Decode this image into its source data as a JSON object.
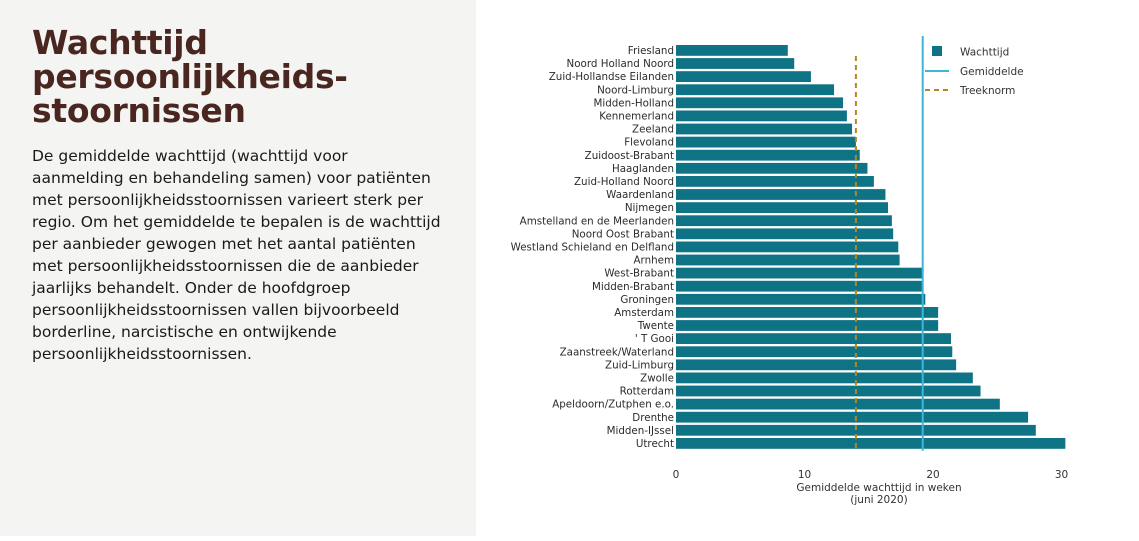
{
  "panel": {
    "title_lines": [
      "Wachttijd",
      "persoonlijkheids-",
      "stoornissen"
    ],
    "description": "De gemiddelde wachttijd (wachttijd voor aanmelding en behandeling samen) voor patiënten met persoonlijkheidsstoornissen varieert sterk per regio. Om het gemiddelde te bepalen is de wachttijd per aanbieder gewogen met het aantal patiënten met persoonlijkheidsstoornissen die de aanbieder jaarlijks behandelt. Onder de hoofdgroep persoonlijkheidsstoornissen vallen bijvoorbeeld borderline, narcistische en ontwijkende persoonlijkheidsstoornissen."
  },
  "colors": {
    "bar": "#0f7386",
    "average": "#3fb6d8",
    "norm": "#b3871f",
    "title": "#4a2620"
  },
  "chart_data": {
    "type": "bar",
    "orientation": "horizontal",
    "categories": [
      "Friesland",
      "Noord Holland Noord",
      "Zuid-Hollandse Eilanden",
      "Noord-Limburg",
      "Midden-Holland",
      "Kennemerland",
      "Zeeland",
      "Flevoland",
      "Zuidoost-Brabant",
      "Haaglanden",
      "Zuid-Holland Noord",
      "Waardenland",
      "Nijmegen",
      "Amstelland en de Meerlanden",
      "Noord Oost Brabant",
      "Westland Schieland en Delfland",
      "Arnhem",
      "West-Brabant",
      "Midden-Brabant",
      "Groningen",
      "Amsterdam",
      "Twente",
      "' T Gooi",
      "Zaanstreek/Waterland",
      "Zuid-Limburg",
      "Zwolle",
      "Rotterdam",
      "Apeldoorn/Zutphen e.o.",
      "Drenthe",
      "Midden-IJssel",
      "Utrecht"
    ],
    "series": [
      {
        "name": "Wachttijd",
        "values": [
          8.7,
          9.2,
          10.5,
          12.3,
          13.0,
          13.3,
          13.7,
          14.0,
          14.3,
          14.9,
          15.4,
          16.3,
          16.5,
          16.8,
          16.9,
          17.3,
          17.4,
          19.2,
          19.2,
          19.4,
          20.4,
          20.4,
          21.4,
          21.5,
          21.8,
          23.1,
          23.7,
          25.2,
          27.4,
          28.0,
          30.3
        ]
      }
    ],
    "average": {
      "name": "Gemiddelde",
      "value": 19.2
    },
    "norm": {
      "name": "Treeknorm",
      "value": 14
    },
    "xlim": [
      0,
      30.3
    ],
    "xticks": [
      "0",
      "10",
      "20",
      "30"
    ],
    "xlabel_lines": [
      "Gemiddelde wachttijd in weken",
      "(juni 2020)"
    ],
    "legend_position": "top-right"
  }
}
